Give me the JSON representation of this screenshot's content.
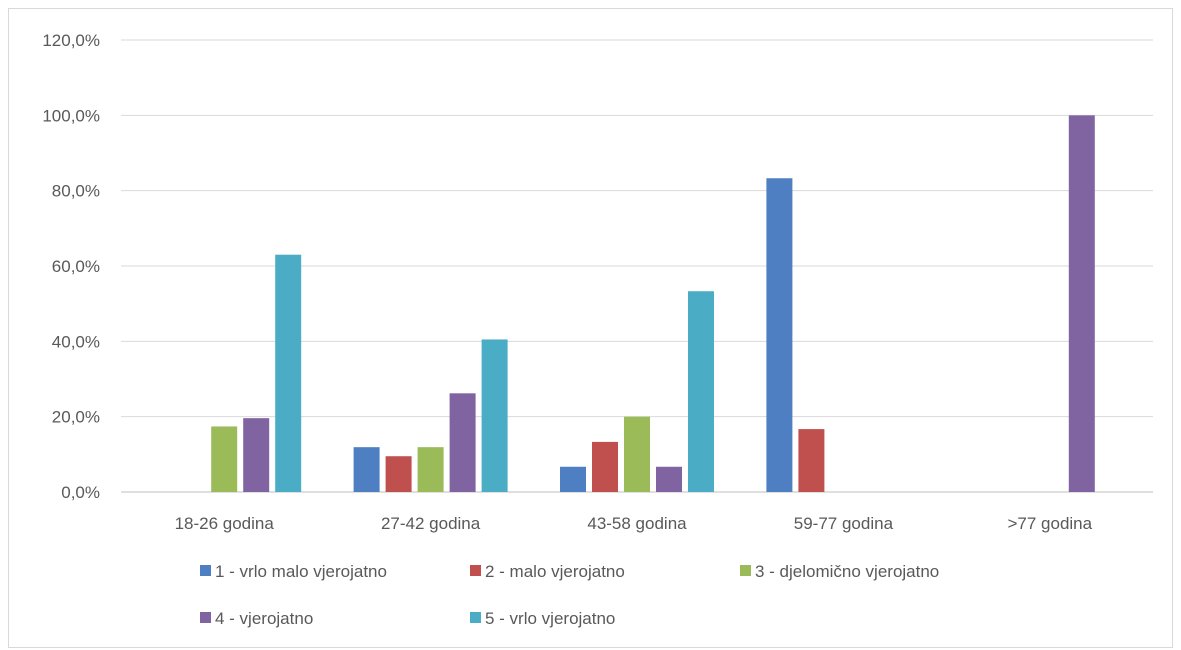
{
  "chart_data": {
    "type": "bar",
    "title": "",
    "xlabel": "",
    "ylabel": "",
    "ylim": [
      0,
      120
    ],
    "y_ticks": [
      "0,0%",
      "20,0%",
      "40,0%",
      "60,0%",
      "80,0%",
      "100,0%",
      "120,0%"
    ],
    "y_tick_values": [
      0,
      20,
      40,
      60,
      80,
      100,
      120
    ],
    "grid": true,
    "legend_position": "bottom",
    "categories": [
      "18-26 godina",
      "27-42 godina",
      "43-58 godina",
      "59-77 godina",
      ">77 godina"
    ],
    "series": [
      {
        "name": "1 - vrlo malo vjerojatno",
        "color": "#4e7fc3",
        "values": [
          0,
          11.9,
          6.7,
          83.3,
          0
        ]
      },
      {
        "name": "2 - malo vjerojatno",
        "color": "#c0504d",
        "values": [
          0,
          9.5,
          13.3,
          16.7,
          0
        ]
      },
      {
        "name": "3 - djelomično vjerojatno",
        "color": "#9bbb59",
        "values": [
          17.4,
          11.9,
          20.0,
          0,
          0
        ]
      },
      {
        "name": "4 - vjerojatno",
        "color": "#8064a2",
        "values": [
          19.6,
          26.2,
          6.7,
          0,
          100
        ]
      },
      {
        "name": "5 - vrlo vjerojatno",
        "color": "#4bacc6",
        "values": [
          63.0,
          40.5,
          53.3,
          0,
          0
        ]
      }
    ]
  }
}
